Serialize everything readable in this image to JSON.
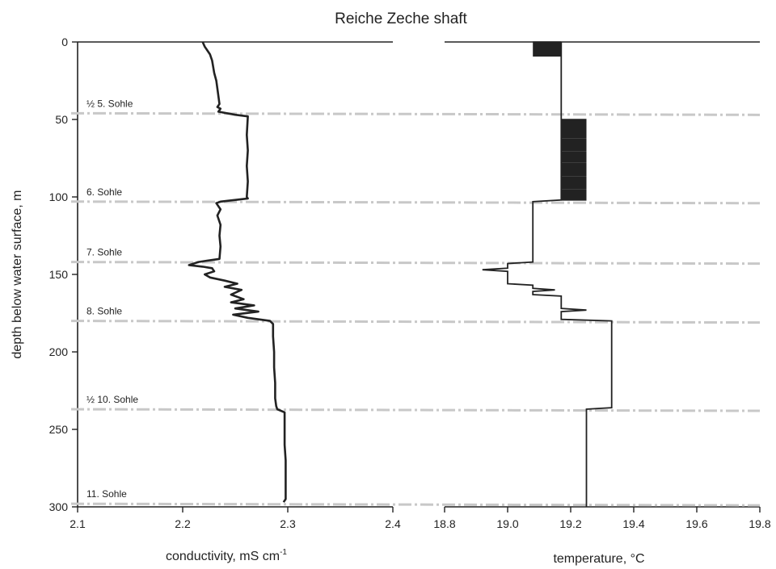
{
  "chart_data": [
    {
      "type": "line",
      "panel": "left",
      "title": "Reiche Zeche shaft",
      "xlabel": "conductivity, mS cm",
      "xlabel_sup": "-1",
      "ylabel": "depth below water surface, m",
      "xlim": [
        2.1,
        2.4
      ],
      "ylim": [
        0,
        300
      ],
      "y_inverted": true,
      "xticks": [
        "2.1",
        "2.2",
        "2.3",
        "2.4"
      ],
      "yticks": [
        "0",
        "50",
        "100",
        "150",
        "200",
        "250",
        "300"
      ],
      "series": [
        {
          "color": "#222222",
          "points": [
            [
              2.219,
              0
            ],
            [
              2.221,
              3
            ],
            [
              2.223,
              5
            ],
            [
              2.226,
              8
            ],
            [
              2.228,
              12
            ],
            [
              2.229,
              16
            ],
            [
              2.23,
              20
            ],
            [
              2.232,
              25
            ],
            [
              2.233,
              30
            ],
            [
              2.234,
              35
            ],
            [
              2.235,
              40
            ],
            [
              2.233,
              42
            ],
            [
              2.236,
              43
            ],
            [
              2.234,
              45
            ],
            [
              2.25,
              47
            ],
            [
              2.262,
              48
            ],
            [
              2.261,
              60
            ],
            [
              2.262,
              70
            ],
            [
              2.261,
              80
            ],
            [
              2.262,
              90
            ],
            [
              2.261,
              100
            ],
            [
              2.262,
              101
            ],
            [
              2.236,
              103
            ],
            [
              2.232,
              104
            ],
            [
              2.236,
              108
            ],
            [
              2.233,
              112
            ],
            [
              2.236,
              118
            ],
            [
              2.235,
              125
            ],
            [
              2.236,
              132
            ],
            [
              2.235,
              140
            ],
            [
              2.215,
              142
            ],
            [
              2.206,
              144
            ],
            [
              2.219,
              145
            ],
            [
              2.228,
              146
            ],
            [
              2.23,
              148
            ],
            [
              2.221,
              150
            ],
            [
              2.226,
              152
            ],
            [
              2.24,
              154
            ],
            [
              2.252,
              156
            ],
            [
              2.24,
              158
            ],
            [
              2.256,
              160
            ],
            [
              2.246,
              163
            ],
            [
              2.258,
              166
            ],
            [
              2.246,
              168
            ],
            [
              2.268,
              170
            ],
            [
              2.25,
              172
            ],
            [
              2.272,
              174
            ],
            [
              2.248,
              176
            ],
            [
              2.262,
              178
            ],
            [
              2.283,
              180
            ],
            [
              2.286,
              182
            ],
            [
              2.286,
              190
            ],
            [
              2.287,
              200
            ],
            [
              2.287,
              210
            ],
            [
              2.288,
              220
            ],
            [
              2.288,
              230
            ],
            [
              2.289,
              235
            ],
            [
              2.29,
              237
            ],
            [
              2.297,
              239
            ],
            [
              2.297,
              250
            ],
            [
              2.297,
              260
            ],
            [
              2.298,
              270
            ],
            [
              2.298,
              280
            ],
            [
              2.298,
              290
            ],
            [
              2.298,
              295
            ],
            [
              2.296,
              297
            ]
          ]
        }
      ]
    },
    {
      "type": "line",
      "panel": "right",
      "xlabel": "temperature, °C",
      "xlim": [
        18.8,
        19.8
      ],
      "ylim": [
        0,
        300
      ],
      "y_inverted": true,
      "xticks": [
        "18.8",
        "19.0",
        "19.2",
        "19.4",
        "19.6",
        "19.8"
      ],
      "series": [
        {
          "color": "#222222",
          "points": [
            [
              19.17,
              0
            ],
            [
              19.17,
              45
            ],
            [
              19.17,
              102
            ],
            [
              19.08,
              103
            ],
            [
              19.08,
              142
            ],
            [
              19.0,
              143
            ],
            [
              19.0,
              146
            ],
            [
              18.92,
              147
            ],
            [
              19.0,
              148
            ],
            [
              19.0,
              156
            ],
            [
              19.08,
              157
            ],
            [
              19.08,
              159
            ],
            [
              19.15,
              160
            ],
            [
              19.08,
              161
            ],
            [
              19.08,
              163
            ],
            [
              19.17,
              164
            ],
            [
              19.17,
              172
            ],
            [
              19.25,
              173
            ],
            [
              19.17,
              174
            ],
            [
              19.17,
              179
            ],
            [
              19.33,
              180
            ],
            [
              19.33,
              236
            ],
            [
              19.25,
              237
            ],
            [
              19.25,
              300
            ]
          ],
          "oscillations": [
            {
              "from_depth": 0,
              "to_depth": 9,
              "x_low": 19.08,
              "x_high": 19.17
            },
            {
              "from_depth": 50,
              "to_depth": 102,
              "x_low": 19.17,
              "x_high": 19.25
            }
          ]
        }
      ]
    }
  ],
  "levels": [
    {
      "label": "½ 5. Sohle",
      "depth": 46
    },
    {
      "label": "6. Sohle",
      "depth": 103
    },
    {
      "label": "7. Sohle",
      "depth": 142
    },
    {
      "label": "8. Sohle",
      "depth": 180
    },
    {
      "label": "½ 10. Sohle",
      "depth": 237
    },
    {
      "label": "11. Sohle",
      "depth": 298
    }
  ],
  "colors": {
    "axis": "#222222",
    "level_line": "#c8c8c8",
    "data": "#222222"
  }
}
